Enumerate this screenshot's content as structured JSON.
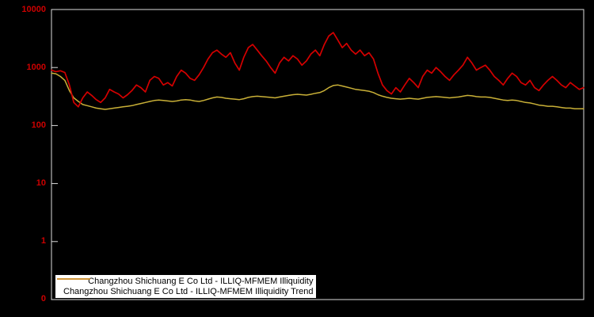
{
  "chart": {
    "background_color": "#000000",
    "axis_color": "#e0e0e0",
    "tick_label_color": "#cc0000"
  },
  "chart_data": {
    "type": "line",
    "title": "",
    "xlabel": "",
    "ylabel": "",
    "y_scale": "log",
    "ylim": [
      0.1,
      10000
    ],
    "y_tick_labels": [
      "10000",
      "1000",
      "100",
      "10",
      "1",
      "0"
    ],
    "x_tick_labels": [],
    "grid": false,
    "legend_position": "bottom-center",
    "series": [
      {
        "name": "Changzhou Shichuang E Co Ltd - ILLIQ-MFMEM Illiquidity",
        "color": "#d40000",
        "values": [
          900,
          850,
          880,
          820,
          500,
          250,
          210,
          300,
          380,
          330,
          280,
          250,
          300,
          420,
          380,
          350,
          300,
          340,
          400,
          500,
          450,
          380,
          600,
          700,
          650,
          500,
          550,
          480,
          700,
          900,
          800,
          650,
          600,
          750,
          1000,
          1400,
          1800,
          2000,
          1700,
          1500,
          1800,
          1200,
          900,
          1500,
          2200,
          2500,
          2000,
          1600,
          1300,
          1000,
          800,
          1200,
          1500,
          1300,
          1600,
          1400,
          1100,
          1300,
          1700,
          2000,
          1600,
          2500,
          3500,
          4000,
          3000,
          2200,
          2600,
          2000,
          1700,
          2000,
          1600,
          1800,
          1400,
          800,
          500,
          400,
          350,
          450,
          380,
          500,
          650,
          550,
          450,
          700,
          900,
          800,
          1000,
          850,
          700,
          600,
          750,
          900,
          1100,
          1500,
          1200,
          900,
          1000,
          1100,
          900,
          700,
          600,
          500,
          650,
          800,
          700,
          550,
          500,
          600,
          450,
          400,
          500,
          600,
          700,
          600,
          500,
          450,
          550,
          480,
          420,
          450
        ]
      },
      {
        "name": "Changzhou Shichuang E Co Ltd - ILLIQ-MFMEM Illiquidity Trend",
        "color": "#c9b037",
        "values": [
          800,
          780,
          700,
          600,
          400,
          300,
          260,
          230,
          220,
          210,
          200,
          195,
          190,
          195,
          200,
          205,
          210,
          215,
          220,
          230,
          240,
          250,
          260,
          270,
          275,
          270,
          265,
          260,
          265,
          275,
          280,
          275,
          265,
          260,
          270,
          285,
          300,
          310,
          305,
          295,
          290,
          285,
          280,
          290,
          305,
          315,
          320,
          315,
          310,
          305,
          300,
          310,
          320,
          330,
          340,
          345,
          340,
          335,
          345,
          360,
          370,
          400,
          450,
          490,
          500,
          480,
          460,
          440,
          420,
          410,
          400,
          390,
          370,
          340,
          320,
          305,
          295,
          290,
          285,
          290,
          295,
          290,
          285,
          295,
          305,
          310,
          315,
          310,
          305,
          300,
          305,
          310,
          320,
          330,
          325,
          315,
          310,
          310,
          305,
          295,
          285,
          275,
          270,
          275,
          270,
          260,
          250,
          245,
          235,
          225,
          220,
          215,
          215,
          210,
          205,
          200,
          200,
          195,
          195,
          195
        ]
      }
    ]
  }
}
